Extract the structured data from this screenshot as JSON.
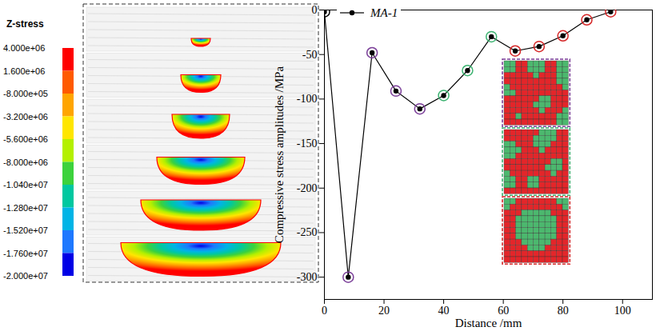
{
  "chart_data": {
    "type": "line",
    "xlabel": "Distance /mm",
    "ylabel": "Compressive stress amplitudes /MPa",
    "x": [
      0,
      8,
      16,
      24,
      32,
      40,
      48,
      56,
      64,
      72,
      80,
      88,
      96
    ],
    "series": [
      {
        "name": "MA-1",
        "color": "#000000",
        "marker": "circle",
        "colors": [
          "#000000",
          "#7b3f99",
          "#7b3f99",
          "#7b3f99",
          "#7b3f99",
          "#3cb371",
          "#3cb371",
          "#3cb371",
          "#d62728",
          "#d62728",
          "#d62728",
          "#d62728",
          "#d62728"
        ],
        "values": [
          -2,
          -300,
          -48,
          -91,
          -111,
          -96,
          -68,
          -30,
          -46,
          -41,
          -29,
          -11,
          -2
        ]
      }
    ],
    "xlim": [
      0,
      110
    ],
    "xticks": [
      0,
      20,
      40,
      60,
      80,
      100
    ],
    "ylim": [
      -325,
      0
    ],
    "yticks": [
      -300,
      -250,
      -200,
      -150,
      -100,
      -50,
      0
    ],
    "grid": false,
    "legend": "top-left",
    "insets": [
      {
        "color": "#7b3f99",
        "colors": [
          "#e3262a",
          "#4cb86e"
        ],
        "cells": [
          [
            1,
            1,
            0,
            0,
            1,
            1,
            1,
            0,
            0,
            1,
            1
          ],
          [
            1,
            1,
            0,
            0,
            1,
            1,
            1,
            0,
            0,
            1,
            1
          ],
          [
            0,
            0,
            0,
            0,
            0,
            1,
            0,
            0,
            0,
            1,
            1
          ],
          [
            0,
            0,
            0,
            0,
            0,
            0,
            0,
            0,
            0,
            1,
            1
          ],
          [
            1,
            0,
            0,
            0,
            0,
            0,
            0,
            0,
            0,
            0,
            1
          ],
          [
            1,
            1,
            0,
            0,
            0,
            0,
            0,
            0,
            0,
            0,
            0
          ],
          [
            0,
            0,
            0,
            0,
            0,
            0,
            1,
            1,
            0,
            0,
            0
          ],
          [
            0,
            0,
            0,
            0,
            0,
            1,
            1,
            1,
            0,
            0,
            0
          ],
          [
            0,
            0,
            0,
            0,
            0,
            0,
            1,
            0,
            0,
            0,
            1
          ],
          [
            0,
            0,
            1,
            0,
            0,
            0,
            0,
            0,
            0,
            1,
            1
          ],
          [
            0,
            0,
            0,
            0,
            0,
            0,
            0,
            0,
            0,
            1,
            1
          ]
        ]
      },
      {
        "color": "#3cb371",
        "colors": [
          "#e3262a",
          "#4cb86e"
        ],
        "cells": [
          [
            0,
            0,
            0,
            0,
            0,
            0,
            1,
            1,
            1,
            0,
            0
          ],
          [
            0,
            0,
            0,
            0,
            0,
            1,
            1,
            1,
            1,
            0,
            0
          ],
          [
            1,
            1,
            0,
            0,
            0,
            1,
            1,
            1,
            0,
            0,
            0
          ],
          [
            1,
            1,
            1,
            0,
            0,
            0,
            1,
            0,
            0,
            0,
            0
          ],
          [
            1,
            1,
            0,
            0,
            0,
            0,
            0,
            0,
            0,
            0,
            0
          ],
          [
            0,
            0,
            0,
            0,
            0,
            0,
            0,
            0,
            1,
            1,
            0
          ],
          [
            0,
            0,
            0,
            0,
            0,
            0,
            0,
            1,
            1,
            1,
            0
          ],
          [
            1,
            0,
            0,
            0,
            0,
            0,
            0,
            0,
            1,
            0,
            0
          ],
          [
            1,
            1,
            0,
            0,
            1,
            1,
            0,
            0,
            0,
            0,
            0
          ],
          [
            1,
            1,
            0,
            0,
            1,
            1,
            0,
            0,
            0,
            0,
            0
          ],
          [
            0,
            0,
            0,
            0,
            0,
            0,
            0,
            0,
            0,
            0,
            0
          ]
        ]
      },
      {
        "color": "#d62728",
        "colors": [
          "#e3262a",
          "#4cb86e"
        ],
        "cells": [
          [
            1,
            1,
            0,
            0,
            0,
            0,
            0,
            0,
            0,
            1,
            1
          ],
          [
            1,
            0,
            0,
            0,
            0,
            0,
            0,
            0,
            0,
            0,
            1
          ],
          [
            0,
            0,
            0,
            1,
            1,
            1,
            1,
            1,
            0,
            0,
            0
          ],
          [
            0,
            0,
            1,
            1,
            1,
            1,
            1,
            1,
            1,
            0,
            0
          ],
          [
            0,
            0,
            1,
            1,
            1,
            1,
            1,
            1,
            1,
            0,
            0
          ],
          [
            0,
            0,
            1,
            1,
            1,
            1,
            1,
            1,
            1,
            0,
            0
          ],
          [
            0,
            0,
            1,
            1,
            1,
            1,
            1,
            1,
            1,
            0,
            0
          ],
          [
            0,
            0,
            0,
            1,
            1,
            1,
            1,
            1,
            0,
            0,
            0
          ],
          [
            0,
            0,
            0,
            0,
            1,
            1,
            1,
            0,
            0,
            0,
            0
          ],
          [
            0,
            0,
            0,
            0,
            0,
            0,
            0,
            0,
            0,
            0,
            0
          ],
          [
            0,
            0,
            0,
            0,
            0,
            0,
            0,
            0,
            0,
            0,
            0
          ]
        ]
      }
    ],
    "colorbar": {
      "title": "Z-stress",
      "range": [
        -20000000,
        4000000
      ],
      "ticks": [
        {
          "value": 4000000,
          "label": "4.000e+06"
        },
        {
          "value": 1600000,
          "label": "1.600e+06"
        },
        {
          "value": -800000,
          "label": "-8.000e+05"
        },
        {
          "value": -3200000,
          "label": "-3.200e+06"
        },
        {
          "value": -5600000,
          "label": "-5.600e+06"
        },
        {
          "value": -8000000,
          "label": "-8.000e+06"
        },
        {
          "value": -10400000,
          "label": "-1.040e+07"
        },
        {
          "value": -12800000,
          "label": "-1.280e+07"
        },
        {
          "value": -15200000,
          "label": "-1.520e+07"
        },
        {
          "value": -17600000,
          "label": "-1.760e+07"
        },
        {
          "value": -20000000,
          "label": "-2.000e+07"
        }
      ],
      "colors": [
        "#ff0000",
        "#ff5a00",
        "#ffa500",
        "#ffe600",
        "#b4f000",
        "#3cd23c",
        "#00c8a0",
        "#00b4e6",
        "#1e78ff",
        "#0000e6"
      ]
    }
  }
}
